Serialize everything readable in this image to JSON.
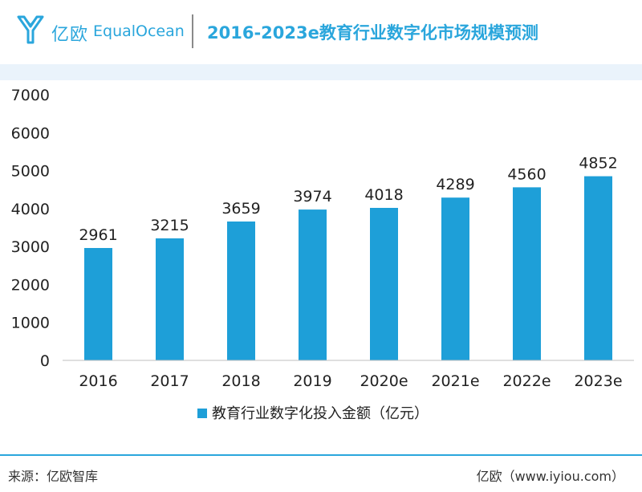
{
  "header": {
    "brand_cn": "亿欧",
    "brand_en": "EqualOcean",
    "title": "2016-2023e教育行业数字化市场规模预测"
  },
  "colors": {
    "accent": "#2aa6dc",
    "bar": "#1e9fd8",
    "band": "#eaf3fb"
  },
  "chart_data": {
    "type": "bar",
    "title": "2016-2023e教育行业数字化市场规模预测",
    "categories": [
      "2016",
      "2017",
      "2018",
      "2019",
      "2020e",
      "2021e",
      "2022e",
      "2023e"
    ],
    "series": [
      {
        "name": "教育行业数字化投入金额（亿元）",
        "values": [
          2961,
          3215,
          3659,
          3974,
          4018,
          4289,
          4560,
          4852
        ]
      }
    ],
    "ylim": [
      0,
      7000
    ],
    "yticks": [
      0,
      1000,
      2000,
      3000,
      4000,
      5000,
      6000,
      7000
    ],
    "grid": false,
    "legend_position": "bottom",
    "data_labels": true
  },
  "footer": {
    "source": "来源：亿欧智库",
    "site": "亿欧（www.iyiou.com）"
  }
}
